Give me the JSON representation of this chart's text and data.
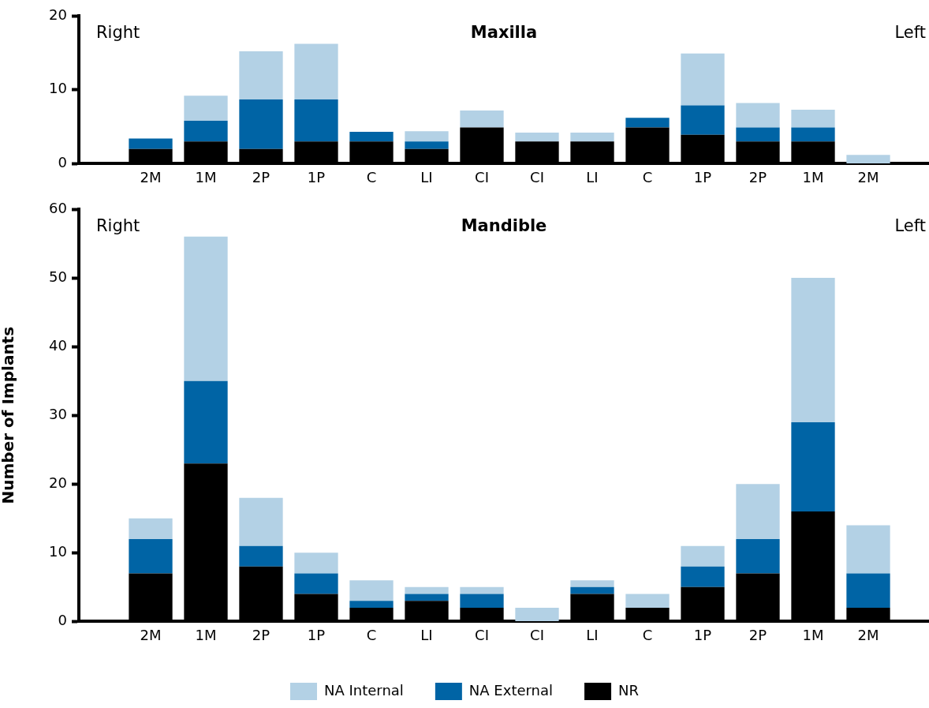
{
  "chart_data": [
    {
      "type": "bar",
      "title": "Maxilla",
      "stacked": true,
      "categories": [
        "2M",
        "1M",
        "2P",
        "1P",
        "C",
        "LI",
        "CI",
        "CI",
        "LI",
        "C",
        "1P",
        "2P",
        "1M",
        "2M"
      ],
      "ylim": [
        0,
        20
      ],
      "yticks": [
        0,
        10,
        20
      ],
      "grid": false,
      "legend": false,
      "annotations": [
        "Right",
        "Left"
      ],
      "series": [
        {
          "color": "#000000",
          "values": [
            2,
            3,
            2,
            3,
            3,
            2,
            4.9,
            3,
            3,
            4.9,
            3.9,
            3,
            3,
            0
          ]
        },
        {
          "color": "#0064a5",
          "values": [
            1.4,
            2.8,
            6.7,
            5.7,
            1.3,
            1,
            0,
            0,
            0,
            1.3,
            4,
            1.9,
            1.9,
            0
          ]
        },
        {
          "color": "#b3d1e5",
          "values": [
            0,
            3.4,
            6.5,
            7.5,
            0,
            1.4,
            2.3,
            1.2,
            1.2,
            0,
            7,
            3.3,
            2.4,
            1.2
          ]
        }
      ]
    },
    {
      "type": "bar",
      "title": "Mandible",
      "ylabel": "Number of Implants",
      "stacked": true,
      "categories": [
        "2M",
        "1M",
        "2P",
        "1P",
        "C",
        "LI",
        "CI",
        "CI",
        "LI",
        "C",
        "1P",
        "2P",
        "1M",
        "2M"
      ],
      "ylim": [
        0,
        60
      ],
      "yticks": [
        0,
        10,
        20,
        30,
        40,
        50,
        60
      ],
      "grid": false,
      "legend": "bottom",
      "annotations": [
        "Right",
        "Left"
      ],
      "series": [
        {
          "name": "NR",
          "color": "#000000",
          "values": [
            7,
            23,
            8,
            4,
            2,
            3,
            2,
            0,
            4,
            2,
            5,
            7,
            16,
            2
          ]
        },
        {
          "name": "NA External",
          "color": "#0064a5",
          "values": [
            5,
            12,
            3,
            3,
            1,
            1,
            2,
            0,
            1,
            0,
            3,
            5,
            13,
            5
          ]
        },
        {
          "name": "NA Internal",
          "color": "#b3d1e5",
          "values": [
            3,
            21,
            7,
            3,
            3,
            1,
            1,
            2,
            1,
            2,
            3,
            8,
            21,
            7
          ]
        }
      ]
    }
  ]
}
